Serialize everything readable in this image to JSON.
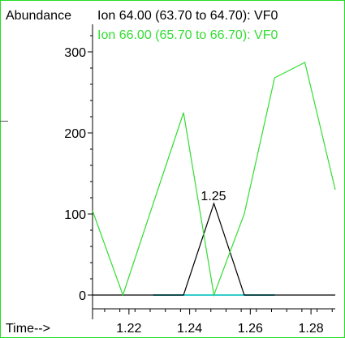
{
  "chart_data": {
    "type": "line",
    "ylabel": "Abundance",
    "xlabel": "Time-->",
    "xlim": [
      1.208,
      1.288
    ],
    "ylim": [
      -5,
      340
    ],
    "x_ticks": [
      "1.22",
      "1.24",
      "1.26",
      "1.28"
    ],
    "y_ticks": [
      "0",
      "100",
      "200",
      "300"
    ],
    "legend_position": "top",
    "series": [
      {
        "name": "Ion  64.00 (63.70 to 64.70): VF0",
        "color": "#000000",
        "x": [
          1.208,
          1.218,
          1.228,
          1.238,
          1.248,
          1.258,
          1.268,
          1.278,
          1.288
        ],
        "values": [
          0,
          0,
          0,
          0,
          113,
          0,
          0,
          0,
          0
        ]
      },
      {
        "name": "Ion  66.00 (65.70 to 66.70): VF0",
        "color": "#33dd33",
        "x": [
          1.208,
          1.218,
          1.228,
          1.238,
          1.248,
          1.258,
          1.268,
          1.278,
          1.288
        ],
        "values": [
          104,
          0,
          113,
          225,
          0,
          100,
          268,
          287,
          130
        ]
      },
      {
        "name": "",
        "color": "#33cccc",
        "x": [
          1.228,
          1.238,
          1.248,
          1.258,
          1.268
        ],
        "values": [
          0,
          0,
          0,
          0,
          0
        ]
      }
    ],
    "annotations": [
      {
        "text": "1.25",
        "x": 1.248,
        "y": 113
      }
    ]
  }
}
